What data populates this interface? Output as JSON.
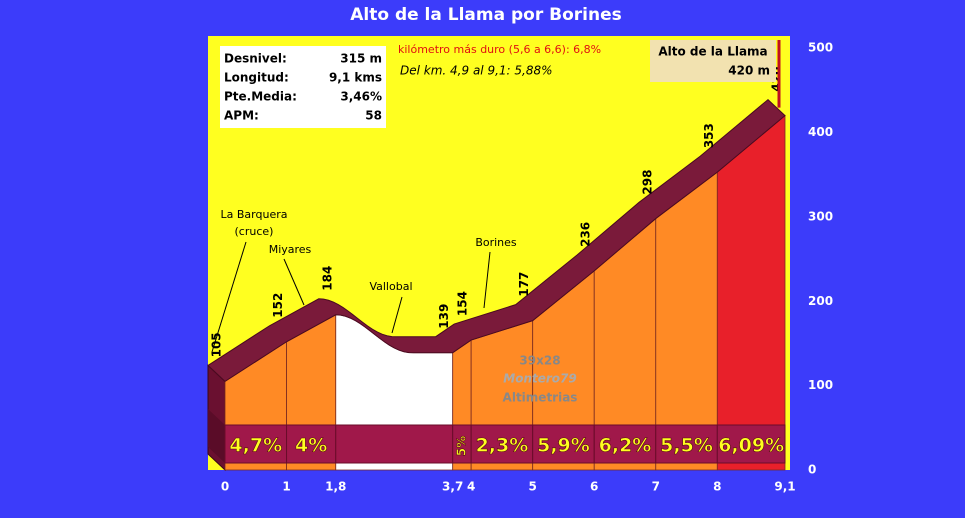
{
  "chart_data": {
    "type": "area",
    "title": "Alto de la Llama por Borines",
    "x": [
      0,
      1,
      1.8,
      3.7,
      4,
      5,
      6,
      7,
      8,
      9.1
    ],
    "values": [
      105,
      152,
      184,
      139,
      154,
      177,
      236,
      298,
      353,
      420
    ],
    "xticks": [
      0,
      1,
      {
        "value": 1.8,
        "label": "1,8"
      },
      {
        "value": 3.7,
        "label": "3,7"
      },
      4,
      5,
      6,
      7,
      8,
      {
        "value": 9.1,
        "label": "9,1"
      }
    ],
    "xlim": [
      0,
      9.1
    ],
    "ylim": [
      0,
      512
    ],
    "yticks": [
      0,
      100,
      200,
      300,
      400,
      500
    ],
    "grades": [
      4.7,
      4,
      null,
      5,
      2.3,
      5.9,
      6.2,
      5.5,
      6.09
    ],
    "grade_labels": [
      "4,7%",
      "4%",
      null,
      "5%",
      "2,3%",
      "5,9%",
      "6,2%",
      "5,5%",
      "6,09%"
    ],
    "segment_colors": [
      "#ff8a25",
      "#ff8a25",
      "#ffffff",
      "#ff8a25",
      "#ff8a25",
      "#ff8a25",
      "#ff8a25",
      "#ff8a25",
      "#e8202a"
    ],
    "info": [
      [
        "Desnivel:",
        "315 m"
      ],
      [
        "Longitud:",
        "9,1 kms"
      ],
      [
        "Pte.Media:",
        "3,46%"
      ],
      [
        "APM:",
        "58"
      ]
    ],
    "hardest_km": "kilómetro más duro (5,6 a 6,6):   6,8%",
    "stretch": "Del km. 4,9 al  9,1:   5,88%",
    "summit": {
      "name": "Alto de la Llama",
      "altitude": "420 m"
    },
    "places": [
      "La Barquera",
      "(cruce)",
      "Miyares",
      "Vallobal",
      "Borines"
    ],
    "watermark": [
      "39x28",
      "Montero79",
      "Altimetrias"
    ]
  }
}
